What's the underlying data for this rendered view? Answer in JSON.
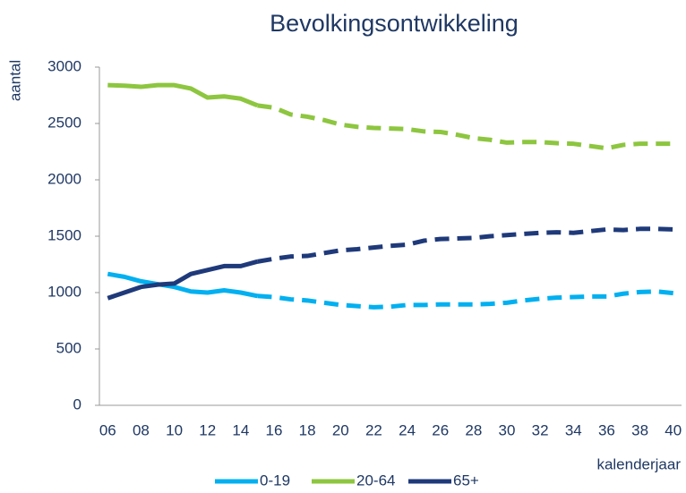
{
  "chart_data": {
    "type": "line",
    "title": "Bevolkingsontwikkeling",
    "y_label": "aantal",
    "x_label": "kalenderjaar",
    "categories": [
      "06",
      null,
      "08",
      null,
      "10",
      null,
      "12",
      null,
      "14",
      null,
      "16",
      null,
      "18",
      null,
      "20",
      null,
      "22",
      null,
      "24",
      null,
      "26",
      null,
      "28",
      null,
      "30",
      null,
      "32",
      null,
      "34",
      null,
      "36",
      null,
      "38",
      null,
      "40"
    ],
    "dashed_from": 9,
    "series": [
      {
        "name": "0-19",
        "color": "#00b0f0",
        "values": [
          1165,
          1140,
          1100,
          1075,
          1050,
          1010,
          1000,
          1020,
          1000,
          970,
          960,
          940,
          930,
          910,
          890,
          880,
          870,
          875,
          890,
          890,
          895,
          895,
          895,
          900,
          910,
          930,
          945,
          955,
          960,
          965,
          965,
          990,
          1005,
          1010,
          995
        ]
      },
      {
        "name": "20-64",
        "color": "#8dc63f",
        "values": [
          2840,
          2835,
          2825,
          2840,
          2840,
          2810,
          2730,
          2740,
          2720,
          2660,
          2640,
          2580,
          2560,
          2530,
          2490,
          2470,
          2460,
          2455,
          2450,
          2430,
          2425,
          2400,
          2370,
          2355,
          2330,
          2335,
          2335,
          2325,
          2320,
          2300,
          2280,
          2310,
          2320,
          2320,
          2320
        ]
      },
      {
        "name": "65+",
        "color": "#1f3a7a",
        "values": [
          950,
          1000,
          1050,
          1070,
          1080,
          1165,
          1200,
          1235,
          1235,
          1275,
          1300,
          1320,
          1325,
          1350,
          1375,
          1385,
          1400,
          1415,
          1425,
          1460,
          1475,
          1480,
          1485,
          1500,
          1510,
          1520,
          1530,
          1535,
          1530,
          1545,
          1560,
          1555,
          1565,
          1565,
          1560
        ]
      }
    ],
    "ylim": [
      0,
      3000
    ],
    "yticks": [
      0,
      500,
      1000,
      1500,
      2000,
      2500,
      3000
    ],
    "grid": false,
    "legend": "bottom"
  }
}
